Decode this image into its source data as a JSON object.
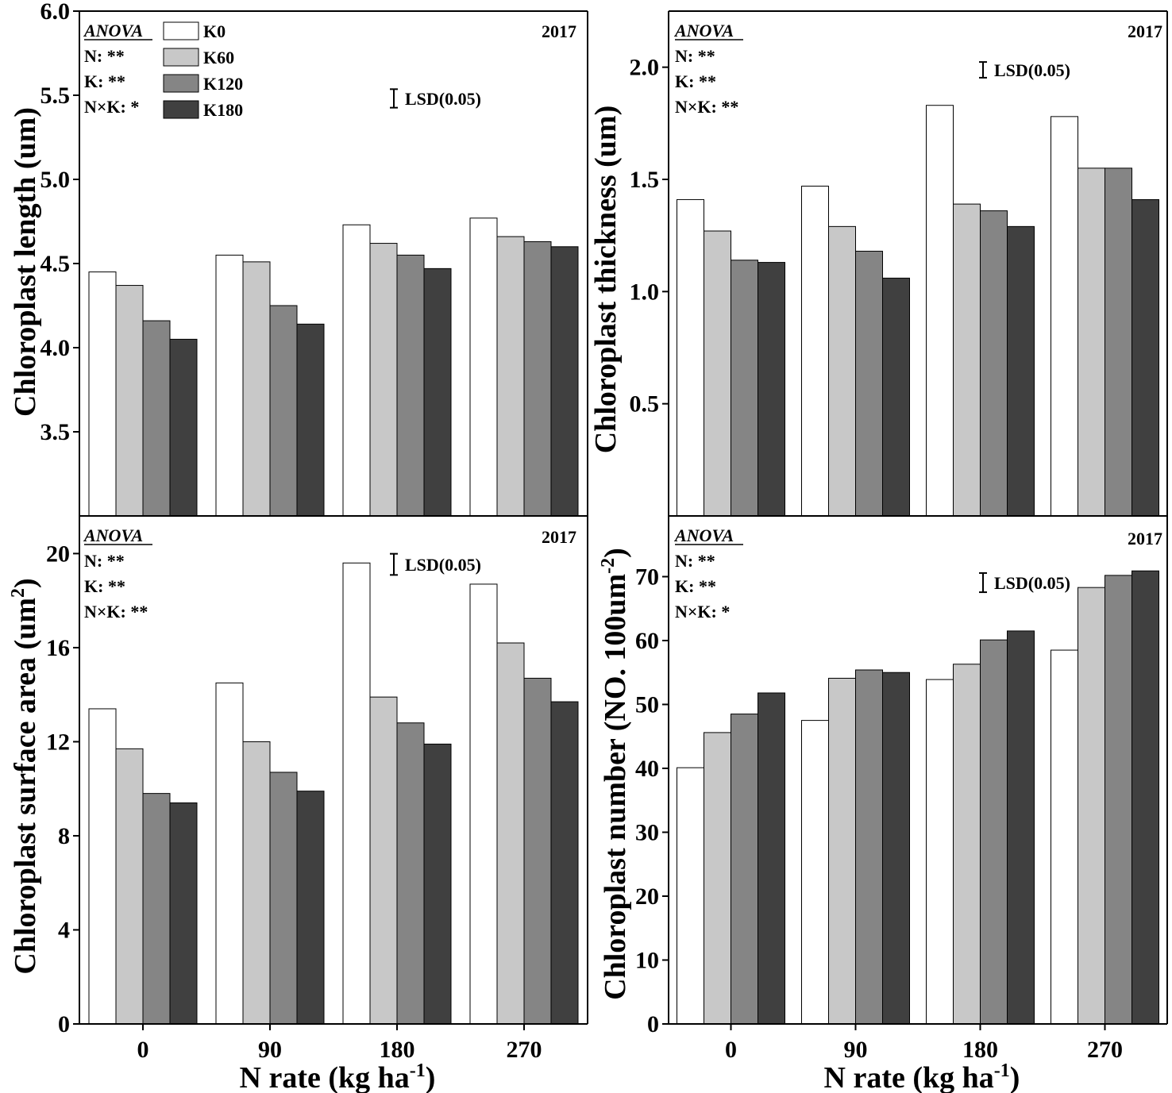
{
  "shared": {
    "categories": [
      "0",
      "90",
      "180",
      "270"
    ],
    "series_names": [
      "K0",
      "K60",
      "K120",
      "K180"
    ],
    "series_colors": [
      "#ffffff",
      "#c8c8c8",
      "#858585",
      "#404040"
    ],
    "xlabel_main": "N rate (kg ha",
    "xlabel_sup": "-1",
    "xlabel_end": ")"
  },
  "chart_data": [
    {
      "type": "bar",
      "title": "",
      "year": "2017",
      "ylabel": "Chloroplast length (um)",
      "ylim": [
        3.0,
        6.0
      ],
      "yticks": [
        "3.5",
        "4.0",
        "4.5",
        "5.0",
        "5.5",
        "6.0"
      ],
      "categories": [
        "0",
        "90",
        "180",
        "270"
      ],
      "series": [
        {
          "name": "K0",
          "values": [
            4.45,
            4.55,
            4.73,
            4.77
          ]
        },
        {
          "name": "K60",
          "values": [
            4.37,
            4.51,
            4.62,
            4.66
          ]
        },
        {
          "name": "K120",
          "values": [
            4.16,
            4.25,
            4.55,
            4.63
          ]
        },
        {
          "name": "K180",
          "values": [
            4.05,
            4.14,
            4.47,
            4.6
          ]
        }
      ],
      "anova": {
        "header": "ANOVA",
        "lines": [
          "N: **",
          "K: **",
          "N×K: *"
        ]
      },
      "lsd_label": "LSD(0.05)",
      "lsd_value": 0.11,
      "show_xlabel": false
    },
    {
      "type": "bar",
      "title": "",
      "year": "2017",
      "ylabel": "Chloroplast thickness (um)",
      "ylim": [
        0.0,
        2.25
      ],
      "yticks": [
        "0.5",
        "1.0",
        "1.5",
        "2.0"
      ],
      "categories": [
        "0",
        "90",
        "180",
        "270"
      ],
      "series": [
        {
          "name": "K0",
          "values": [
            1.41,
            1.47,
            1.83,
            1.78
          ]
        },
        {
          "name": "K60",
          "values": [
            1.27,
            1.29,
            1.39,
            1.55
          ]
        },
        {
          "name": "K120",
          "values": [
            1.14,
            1.18,
            1.36,
            1.55
          ]
        },
        {
          "name": "K180",
          "values": [
            1.13,
            1.06,
            1.29,
            1.41
          ]
        }
      ],
      "anova": {
        "header": "ANOVA",
        "lines": [
          "N: **",
          "K: **",
          "N×K: **"
        ]
      },
      "lsd_label": "LSD(0.05)",
      "lsd_value": 0.07,
      "show_xlabel": false
    },
    {
      "type": "bar",
      "title": "",
      "year": "2017",
      "ylabel": "Chloroplast surface area (um",
      "ylabel_sup": "2",
      "ylabel_end": ")",
      "ylim": [
        0,
        21.6
      ],
      "yticks": [
        "0",
        "4",
        "8",
        "12",
        "16",
        "20"
      ],
      "categories": [
        "0",
        "90",
        "180",
        "270"
      ],
      "series": [
        {
          "name": "K0",
          "values": [
            13.4,
            14.5,
            19.6,
            18.7
          ]
        },
        {
          "name": "K60",
          "values": [
            11.7,
            12.0,
            13.9,
            16.2
          ]
        },
        {
          "name": "K120",
          "values": [
            9.8,
            10.7,
            12.8,
            14.7
          ]
        },
        {
          "name": "K180",
          "values": [
            9.4,
            9.9,
            11.9,
            13.7
          ]
        }
      ],
      "anova": {
        "header": "ANOVA",
        "lines": [
          "N: **",
          "K: **",
          "N×K: **"
        ]
      },
      "lsd_label": "LSD(0.05)",
      "lsd_value": 0.9,
      "show_xlabel": true
    },
    {
      "type": "bar",
      "title": "",
      "year": "2017",
      "ylabel": "Chloroplast number (NO. 100um",
      "ylabel_sup": "-2",
      "ylabel_end": ")",
      "ylim": [
        0,
        79.5
      ],
      "yticks": [
        "0",
        "10",
        "20",
        "30",
        "40",
        "50",
        "60",
        "70"
      ],
      "categories": [
        "0",
        "90",
        "180",
        "270"
      ],
      "series": [
        {
          "name": "K0",
          "values": [
            40.1,
            47.5,
            53.9,
            58.5
          ]
        },
        {
          "name": "K60",
          "values": [
            45.6,
            54.1,
            56.3,
            68.3
          ]
        },
        {
          "name": "K120",
          "values": [
            48.5,
            55.4,
            60.1,
            70.2
          ]
        },
        {
          "name": "K180",
          "values": [
            51.8,
            55.0,
            61.5,
            70.9
          ]
        }
      ],
      "anova": {
        "header": "ANOVA",
        "lines": [
          "N: **",
          "K: **",
          "N×K: *"
        ]
      },
      "lsd_label": "LSD(0.05)",
      "lsd_value": 3.0,
      "show_xlabel": true
    }
  ]
}
